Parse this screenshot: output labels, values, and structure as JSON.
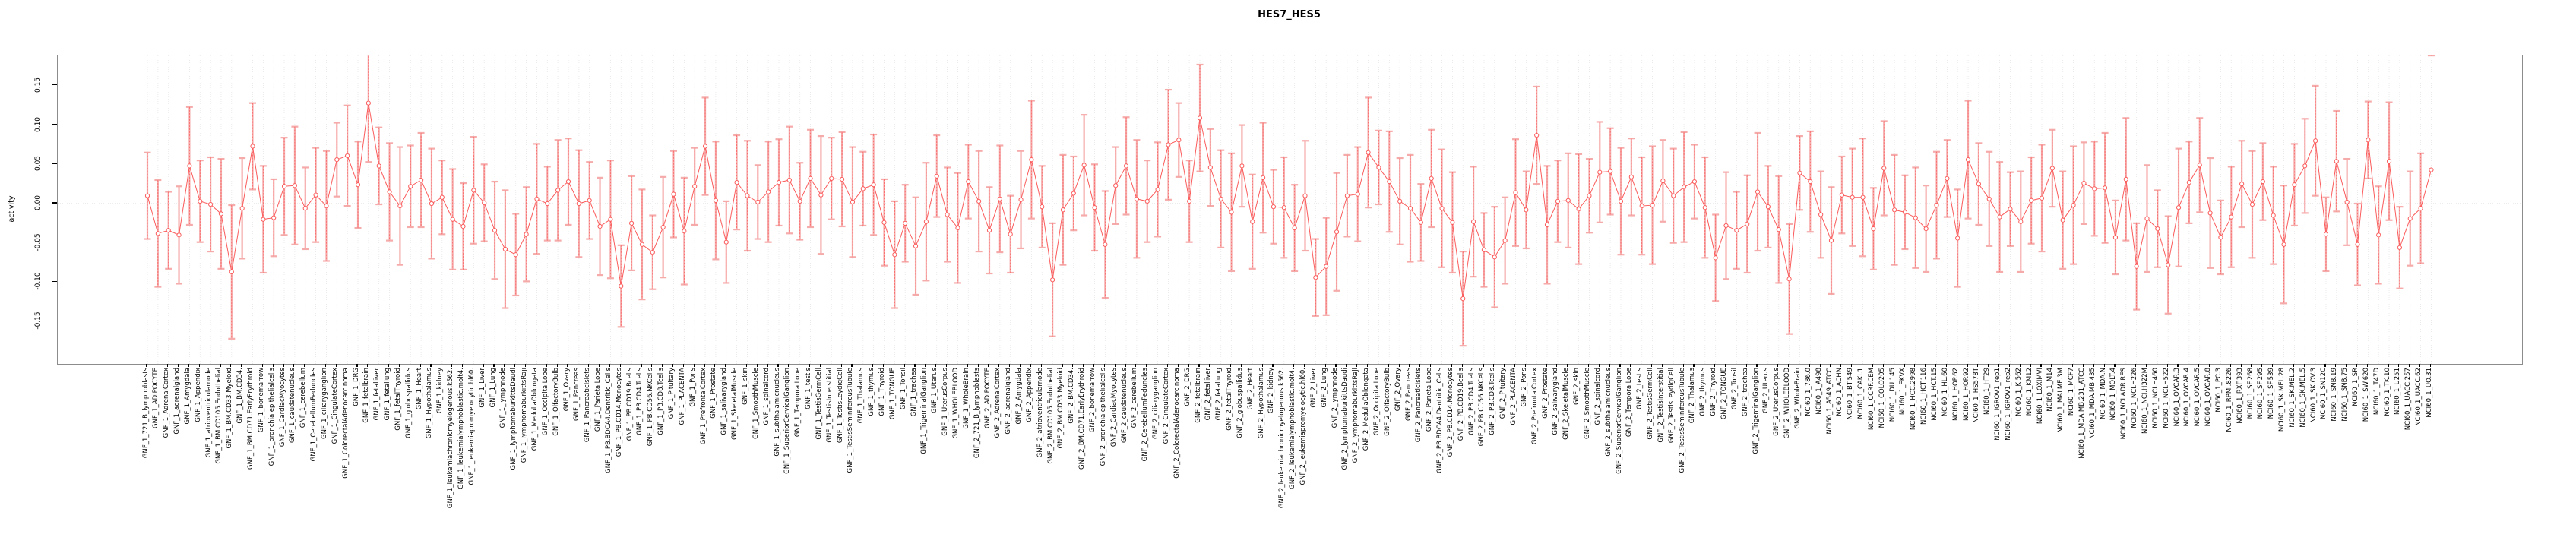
{
  "chart": {
    "title": "HES7_HES5",
    "y_axis_title": "activity",
    "colors": {
      "marker_line": "#fb5b5b",
      "error_bar": "#f6abab",
      "gridline": "#e6e6e6",
      "zero_line": "#cccccc",
      "box_border": "#8c8c8c",
      "text": "#000000"
    }
  },
  "chart_data": {
    "type": "line",
    "subtype": "points-with-error-bars",
    "title": "HES7_HES5",
    "xlabel": "",
    "ylabel": "activity",
    "ylim": [
      -0.204,
      0.189
    ],
    "yticks": [
      0.15,
      0.1,
      0.05,
      0.0,
      -0.05,
      -0.1,
      -0.15
    ],
    "ytick_labels": [
      "0.15",
      "0.10",
      "0.05",
      "0.00",
      "-0.05",
      "-0.10",
      "-0.15"
    ],
    "grid": "vertical dotted gridline at every category; dotted horizontal line at 0",
    "legend": "none",
    "marker": "open-circle",
    "categories": [
      "GNF_1_721_B_lymphoblasts",
      "GNF_1_ADIPOCYTE",
      "GNF_1_AdrenalCortex",
      "GNF_1_adrenalgland",
      "GNF_1_Amygdala",
      "GNF_1_Appendix",
      "GNF_1_atrioventricularnode",
      "GNF_1_BM.CD105.Endothelial",
      "GNF_1_BM.CD33.Myeloid",
      "GNF_1_BM.CD34.",
      "GNF_1_BM.CD71.EarlyErythroid",
      "GNF_1_bonemarrow",
      "GNF_1_bronchialepithelialcells",
      "GNF_1_CardiacMyocytes",
      "GNF_1_caudatenucleus",
      "GNF_1_cerebellum",
      "GNF_1_CerebellumPeduncles",
      "GNF_1_ciliaryganglion",
      "GNF_1_CingulateCortex",
      "GNF_1_ColorectalAdenocarcinoma",
      "GNF_1_DRG",
      "GNF_1_fetalbrain",
      "GNF_1_fetalliver",
      "GNF_1_fetallung",
      "GNF_1_fetalThyroid",
      "GNF_1_globuspallidus",
      "GNF_1_Heart",
      "GNF_1_Hypothalamus",
      "GNF_1_kidney",
      "GNF_1_leukemiachronicmyelogenous.k562.",
      "GNF_1_leukemialymphoblastic.molt4.",
      "GNF_1_leukemiapromyelocytic.hl60.",
      "GNF_1_Liver",
      "GNF_1_Lung",
      "GNF_1_lymphnode",
      "GNF_1_lymphomaburkittsDaudi",
      "GNF_1_lymphomaburkittsRaji",
      "GNF_1_MedullaOblongata",
      "GNF_1_OccipitalLobe",
      "GNF_1_OlfactoryBulb",
      "GNF_1_Ovary",
      "GNF_1_Pancreas",
      "GNF_1_PancreaticIslets",
      "GNF_1_ParietalLobe",
      "GNF_1_PB.BDCA4.Dentritic_Cells",
      "GNF_1_PB.CD14.Monocytes",
      "GNF_1_PB.CD19.Bcells",
      "GNF_1_PB.CD4.Tcells",
      "GNF_1_PB.CD56.NKCells",
      "GNF_1_PB.CD8.Tcells",
      "GNF_1_Pituitary",
      "GNF_1_PLACENTA",
      "GNF_1_Pons",
      "GNF_1_PrefrontalCortex",
      "GNF_1_Prostate",
      "GNF_1_salivarygland",
      "GNF_1_SkeletalMuscle",
      "GNF_1_skin",
      "GNF_1_SmoothMuscle",
      "GNF_1_spinalcord",
      "GNF_1_subthalamicnucleus",
      "GNF_1_SuperiorCervicalGanglion",
      "GNF_1_TemporalLobe",
      "GNF_1_testis",
      "GNF_1_TestisGermCell",
      "GNF_1_TestisInterstitial",
      "GNF_1_TestisLeydigCell",
      "GNF_1_TestisSeminiferousTubule",
      "GNF_1_Thalamus",
      "GNF_1_thymus",
      "GNF_1_Thyroid",
      "GNF_1_TONGUE",
      "GNF_1_Tonsil",
      "GNF_1_trachea",
      "GNF_1_TrigeminalGanglion",
      "GNF_1_Uterus",
      "GNF_1_UterusCorpus",
      "GNF_1_WHOLEBLOOD",
      "GNF_1_WholeBrain",
      "GNF_2_721_B_lymphoblasts",
      "GNF_2_ADIPOCYTE",
      "GNF_2_AdrenalCortex",
      "GNF_2_adrenalgland",
      "GNF_2_Amygdala",
      "GNF_2_Appendix",
      "GNF_2_atrioventricularnode",
      "GNF_2_BM.CD105.Endothelial",
      "GNF_2_BM.CD33.Myeloid",
      "GNF_2_BM.CD34.",
      "GNF_2_BM.CD71.EarlyErythroid",
      "GNF_2_bonemarrow",
      "GNF_2_bronchialepithelialcells",
      "GNF_2_CardiacMyocytes",
      "GNF_2_caudatenucleus",
      "GNF_2_cerebellum",
      "GNF_2_CerebellumPeduncles",
      "GNF_2_ciliaryganglion",
      "GNF_2_CingulateCortex",
      "GNF_2_ColorectalAdenocarcinoma",
      "GNF_2_DRG",
      "GNF_2_fetalbrain",
      "GNF_2_fetalliver",
      "GNF_2_fetallung",
      "GNF_2_fetalThyroid",
      "GNF_2_globuspallidus",
      "GNF_2_Heart",
      "GNF_2_Hypothalamus",
      "GNF_2_kidney",
      "GNF_2_leukemiachronicmyelogenous.k562.",
      "GNF_2_leukemialymphoblastic.molt4.",
      "GNF_2_leukemiapromyelocytic.hl60.",
      "GNF_2_Liver",
      "GNF_2_Lung",
      "GNF_2_lymphnode",
      "GNF_2_lymphomaburkittsDaudi",
      "GNF_2_lymphomaburkittsRaji",
      "GNF_2_MedullaOblongata",
      "GNF_2_OccipitalLobe",
      "GNF_2_OlfactoryBulb",
      "GNF_2_Ovary",
      "GNF_2_Pancreas",
      "GNF_2_PancreaticIslets",
      "GNF_2_ParietalLobe",
      "GNF_2_PB.BDCA4.Dentritic_Cells",
      "GNF_2_PB.CD14.Monocytes",
      "GNF_2_PB.CD19.Bcells",
      "GNF_2_PB.CD4.Tcells",
      "GNF_2_PB.CD56.NKCells",
      "GNF_2_PB.CD8.Tcells",
      "GNF_2_Pituitary",
      "GNF_2_PLACENTA",
      "GNF_2_Pons",
      "GNF_2_PrefrontalCortex",
      "GNF_2_Prostate",
      "GNF_2_salivarygland",
      "GNF_2_SkeletalMuscle",
      "GNF_2_skin",
      "GNF_2_SmoothMuscle",
      "GNF_2_spinalcord",
      "GNF_2_subthalamicnucleus",
      "GNF_2_SuperiorCervicalGanglion",
      "GNF_2_TemporalLobe",
      "GNF_2_testis",
      "GNF_2_TestisGermCell",
      "GNF_2_TestisInterstitial",
      "GNF_2_TestisLeydigCell",
      "GNF_2_TestisSeminiferousTubule",
      "GNF_2_Thalamus",
      "GNF_2_thymus",
      "GNF_2_Thyroid",
      "GNF_2_TONGUE",
      "GNF_2_Tonsil",
      "GNF_2_trachea",
      "GNF_2_TrigeminalGanglion",
      "GNF_2_Uterus",
      "GNF_2_UterusCorpus",
      "GNF_2_WHOLEBLOOD",
      "GNF_2_WholeBrain",
      "NCI60_1_786.0",
      "NCI60_1_A498",
      "NCI60_1_A549_ATCC",
      "NCI60_1_ACHN",
      "NCI60_1_BT.549",
      "NCI60_1_CAKI.1",
      "NCI60_1_CCRF.CEM",
      "NCI60_1_COLO205",
      "NCI60_1_DU.145",
      "NCI60_1_EKVX",
      "NCI60_1_HCC.2998",
      "NCI60_1_HCT.116",
      "NCI60_1_HCT.15",
      "NCI60_1_HL.60",
      "NCI60_1_HOP.62",
      "NCI60_1_HOP.92",
      "NCI60_1_HS578T",
      "NCI60_1_HT29",
      "NCI60_1_IGROV1_rep1",
      "NCI60_1_IGROV1_rep2",
      "NCI60_1_K.562",
      "NCI60_1_KM12",
      "NCI60_1_LOXIMVI",
      "NCI60_1_M14",
      "NCI60_1_MALME.3M",
      "NCI60_1_MCF7",
      "NCI60_1_MDA.MB.231_ATCC",
      "NCI60_1_MDA.MB.435",
      "NCI60_1_MDA.N",
      "NCI60_1_MOLT.4",
      "NCI60_1_NCI.ADR.RES",
      "NCI60_1_NCI.H226",
      "NCI60_1_NCI.H322M",
      "NCI60_1_NCI.H460",
      "NCI60_1_NCI.H522",
      "NCI60_1_OVCAR.3",
      "NCI60_1_OVCAR.4",
      "NCI60_1_OVCAR.5",
      "NCI60_1_OVCAR.8",
      "NCI60_1_PC.3",
      "NCI60_1_RPMI.8226",
      "NCI60_1_RXF.393",
      "NCI60_1_SF.268",
      "NCI60_1_SF.295",
      "NCI60_1_SF.539",
      "NCI60_1_SK.MEL.28",
      "NCI60_1_SK.MEL.2",
      "NCI60_1_SK.MEL.5",
      "NCI60_1_SK.OV.3",
      "NCI60_1_SN12C",
      "NCI60_1_SNB.19",
      "NCI60_1_SNB.75",
      "NCI60_1_SR",
      "NCI60_1_SW.620",
      "NCI60_1_T47D",
      "NCI60_1_TK.10",
      "NCI60_1_U251",
      "NCI60_1_UACC.257",
      "NCI60_1_UACC.62",
      "NCI60_1_UO.31"
    ],
    "values": [
      0.01,
      -0.038,
      -0.034,
      -0.04,
      0.048,
      0.003,
      -0.001,
      -0.013,
      -0.087,
      -0.006,
      0.073,
      -0.02,
      -0.018,
      0.022,
      0.023,
      -0.006,
      0.011,
      -0.003,
      0.056,
      0.061,
      0.024,
      0.128,
      0.048,
      0.015,
      -0.003,
      0.022,
      0.03,
      0.0,
      0.008,
      -0.02,
      -0.029,
      0.017,
      0.001,
      -0.034,
      -0.058,
      -0.065,
      -0.039,
      0.006,
      0.0,
      0.017,
      0.028,
      0.0,
      0.004,
      -0.029,
      -0.02,
      -0.105,
      -0.025,
      -0.052,
      -0.062,
      -0.03,
      0.012,
      -0.035,
      0.022,
      0.073,
      0.004,
      -0.049,
      0.027,
      0.01,
      0.002,
      0.015,
      0.027,
      0.03,
      0.003,
      0.032,
      0.011,
      0.032,
      0.031,
      0.002,
      0.019,
      0.024,
      -0.024,
      -0.065,
      -0.025,
      -0.054,
      -0.023,
      0.035,
      -0.014,
      -0.031,
      0.028,
      0.003,
      -0.034,
      0.006,
      -0.039,
      0.005,
      0.056,
      -0.004,
      -0.097,
      -0.008,
      0.013,
      0.049,
      -0.005,
      -0.052,
      0.023,
      0.048,
      0.006,
      0.003,
      0.018,
      0.075,
      0.081,
      0.003,
      0.109,
      0.046,
      0.006,
      -0.011,
      0.048,
      -0.023,
      0.033,
      -0.004,
      -0.005,
      -0.031,
      0.01,
      -0.094,
      -0.08,
      -0.036,
      0.01,
      0.012,
      0.065,
      0.046,
      0.028,
      0.003,
      -0.006,
      -0.024,
      0.032,
      -0.006,
      -0.024,
      -0.121,
      -0.023,
      -0.059,
      -0.068,
      -0.047,
      0.014,
      -0.008,
      0.087,
      -0.027,
      0.003,
      0.004,
      -0.007,
      0.01,
      0.04,
      0.041,
      0.003,
      0.034,
      -0.003,
      -0.002,
      0.029,
      0.01,
      0.021,
      0.028,
      -0.005,
      -0.069,
      -0.028,
      -0.034,
      -0.026,
      0.015,
      -0.004,
      -0.033,
      -0.096,
      0.039,
      0.028,
      -0.014,
      -0.047,
      0.011,
      0.008,
      0.008,
      -0.032,
      0.045,
      -0.008,
      -0.011,
      -0.018,
      -0.032,
      -0.002,
      0.032,
      -0.044,
      0.056,
      0.025,
      0.006,
      -0.017,
      -0.007,
      -0.023,
      0.004,
      0.007,
      0.045,
      -0.021,
      -0.002,
      0.026,
      0.019,
      0.02,
      -0.043,
      0.031,
      -0.08,
      -0.019,
      -0.032,
      -0.078,
      -0.005,
      0.027,
      0.049,
      -0.012,
      -0.043,
      -0.017,
      0.025,
      -0.001,
      0.028,
      -0.015,
      -0.052,
      0.024,
      0.048,
      0.08,
      -0.039,
      0.054,
      0.002,
      -0.052,
      0.081,
      -0.04,
      0.054,
      -0.056,
      -0.019,
      -0.006,
      0.043
    ],
    "errors": [
      0.055,
      0.068,
      0.049,
      0.062,
      0.075,
      0.052,
      0.06,
      0.07,
      0.085,
      0.064,
      0.055,
      0.068,
      0.049,
      0.062,
      0.075,
      0.052,
      0.06,
      0.07,
      0.047,
      0.064,
      0.055,
      0.075,
      0.049,
      0.062,
      0.075,
      0.052,
      0.06,
      0.07,
      0.047,
      0.064,
      0.055,
      0.068,
      0.049,
      0.062,
      0.075,
      0.052,
      0.06,
      0.07,
      0.047,
      0.064,
      0.055,
      0.068,
      0.049,
      0.062,
      0.075,
      0.052,
      0.06,
      0.07,
      0.047,
      0.064,
      0.055,
      0.068,
      0.049,
      0.062,
      0.075,
      0.052,
      0.06,
      0.07,
      0.047,
      0.064,
      0.055,
      0.068,
      0.049,
      0.062,
      0.075,
      0.052,
      0.06,
      0.07,
      0.047,
      0.064,
      0.055,
      0.068,
      0.049,
      0.062,
      0.075,
      0.052,
      0.06,
      0.07,
      0.047,
      0.064,
      0.055,
      0.068,
      0.049,
      0.062,
      0.075,
      0.052,
      0.072,
      0.07,
      0.047,
      0.064,
      0.055,
      0.068,
      0.049,
      0.062,
      0.075,
      0.052,
      0.06,
      0.07,
      0.047,
      0.052,
      0.068,
      0.049,
      0.062,
      0.075,
      0.052,
      0.06,
      0.07,
      0.047,
      0.064,
      0.055,
      0.07,
      0.049,
      0.062,
      0.075,
      0.052,
      0.06,
      0.07,
      0.047,
      0.064,
      0.055,
      0.068,
      0.049,
      0.062,
      0.075,
      0.064,
      0.06,
      0.07,
      0.047,
      0.064,
      0.055,
      0.068,
      0.049,
      0.062,
      0.075,
      0.052,
      0.06,
      0.07,
      0.047,
      0.064,
      0.055,
      0.068,
      0.049,
      0.062,
      0.075,
      0.052,
      0.06,
      0.07,
      0.047,
      0.064,
      0.055,
      0.068,
      0.049,
      0.062,
      0.075,
      0.052,
      0.068,
      0.07,
      0.047,
      0.064,
      0.055,
      0.068,
      0.049,
      0.062,
      0.075,
      0.052,
      0.06,
      0.07,
      0.047,
      0.064,
      0.055,
      0.068,
      0.049,
      0.062,
      0.075,
      0.052,
      0.06,
      0.07,
      0.047,
      0.064,
      0.055,
      0.068,
      0.049,
      0.062,
      0.075,
      0.052,
      0.06,
      0.07,
      0.047,
      0.078,
      0.055,
      0.068,
      0.049,
      0.062,
      0.075,
      0.052,
      0.06,
      0.07,
      0.047,
      0.064,
      0.055,
      0.068,
      0.049,
      0.062,
      0.075,
      0.052,
      0.06,
      0.07,
      0.047,
      0.064,
      0.055,
      0.052,
      0.049,
      0.062,
      0.075,
      0.052,
      0.06,
      0.07
    ]
  }
}
